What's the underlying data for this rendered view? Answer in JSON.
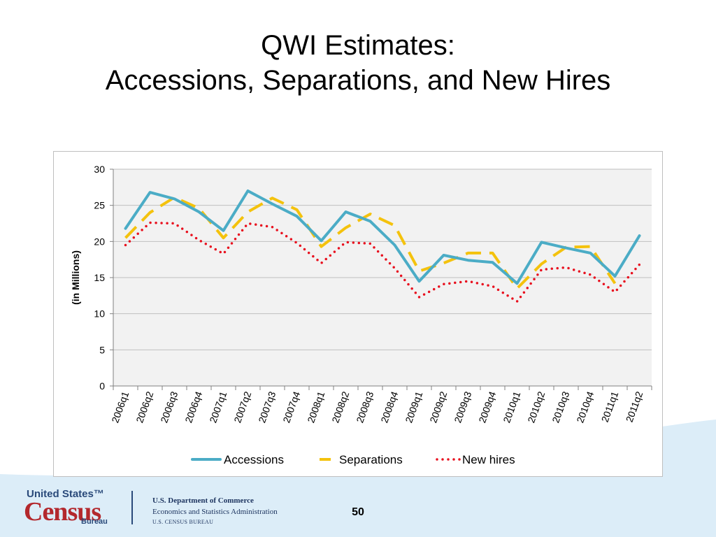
{
  "title": {
    "line1": "QWI Estimates:",
    "line2": "Accessions, Separations, and New Hires"
  },
  "chart_data": {
    "type": "line",
    "title": "",
    "xlabel": "",
    "ylabel": "(in Millions)",
    "ylim": [
      0,
      30
    ],
    "yticks": [
      0,
      5,
      10,
      15,
      20,
      25,
      30
    ],
    "grid": true,
    "legend_position": "bottom",
    "categories": [
      "2006q1",
      "2006q2",
      "2006q3",
      "2006q4",
      "2007q1",
      "2007q2",
      "2007q3",
      "2007q4",
      "2008q1",
      "2008q2",
      "2008q3",
      "2008q4",
      "2009q1",
      "2009q2",
      "2009q3",
      "2009q4",
      "2010q1",
      "2010q2",
      "2010q3",
      "2010q4",
      "2011q1",
      "2011q2"
    ],
    "series": [
      {
        "name": "Accessions",
        "color": "#4bacc6",
        "style": "solid",
        "values": [
          21.8,
          26.8,
          25.9,
          24.1,
          21.5,
          27.0,
          25.2,
          23.5,
          20.1,
          24.1,
          22.8,
          19.5,
          14.5,
          18.1,
          17.4,
          17.1,
          14.2,
          19.9,
          19.1,
          18.4,
          15.2,
          20.8
        ]
      },
      {
        "name": "Separations",
        "color": "#f4c20d",
        "style": "dashed",
        "values": [
          20.5,
          24.0,
          26.1,
          24.6,
          20.5,
          24.1,
          26.0,
          24.4,
          19.3,
          21.9,
          23.8,
          22.2,
          15.9,
          17.0,
          18.4,
          18.4,
          13.5,
          16.9,
          19.2,
          19.3,
          14.2,
          null
        ]
      },
      {
        "name": "New hires",
        "color": "#e8101e",
        "style": "dotted",
        "values": [
          19.5,
          22.6,
          22.5,
          20.2,
          18.3,
          22.5,
          22.0,
          19.8,
          17.0,
          19.9,
          19.7,
          16.3,
          12.3,
          14.1,
          14.5,
          13.8,
          11.7,
          16.1,
          16.4,
          15.4,
          13.0,
          16.8
        ]
      }
    ]
  },
  "footer": {
    "logo_line1": "United States™",
    "logo_line2": "Census",
    "logo_line3": "Bureau",
    "dept_line1": "U.S. Department of Commerce",
    "dept_line2": "Economics and Statistics Administration",
    "dept_line3": "U.S. CENSUS BUREAU",
    "page_number": "50"
  },
  "colors": {
    "plot_background": "#f2f2f2",
    "gridline": "#bfbfbf",
    "footer_wave": "#dcedf8",
    "census_red": "#b3282d",
    "census_blue": "#2a4a7a"
  }
}
